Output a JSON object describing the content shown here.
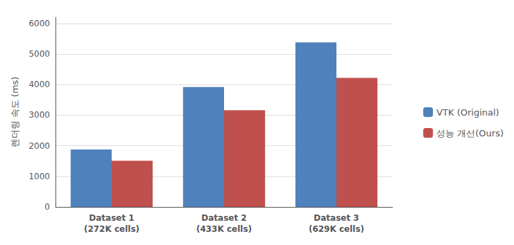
{
  "chart_data": {
    "type": "bar",
    "categories": [
      "Dataset 1\n(272K cells)",
      "Dataset 2\n(433K cells)",
      "Dataset 3\n(629K cells)"
    ],
    "series": [
      {
        "name": "VTK (Original)",
        "color": "#4F81BD",
        "values": [
          1880,
          3920,
          5380
        ]
      },
      {
        "name": "성능 개선(Ours)",
        "color": "#C0504D",
        "values": [
          1510,
          3160,
          4220
        ]
      }
    ],
    "ylabel": "렌더링 속도 (ms)",
    "ylim": [
      0,
      6200
    ],
    "yticks": [
      0,
      1000,
      2000,
      3000,
      4000,
      5000,
      6000
    ],
    "grid": true,
    "legend": "right"
  }
}
